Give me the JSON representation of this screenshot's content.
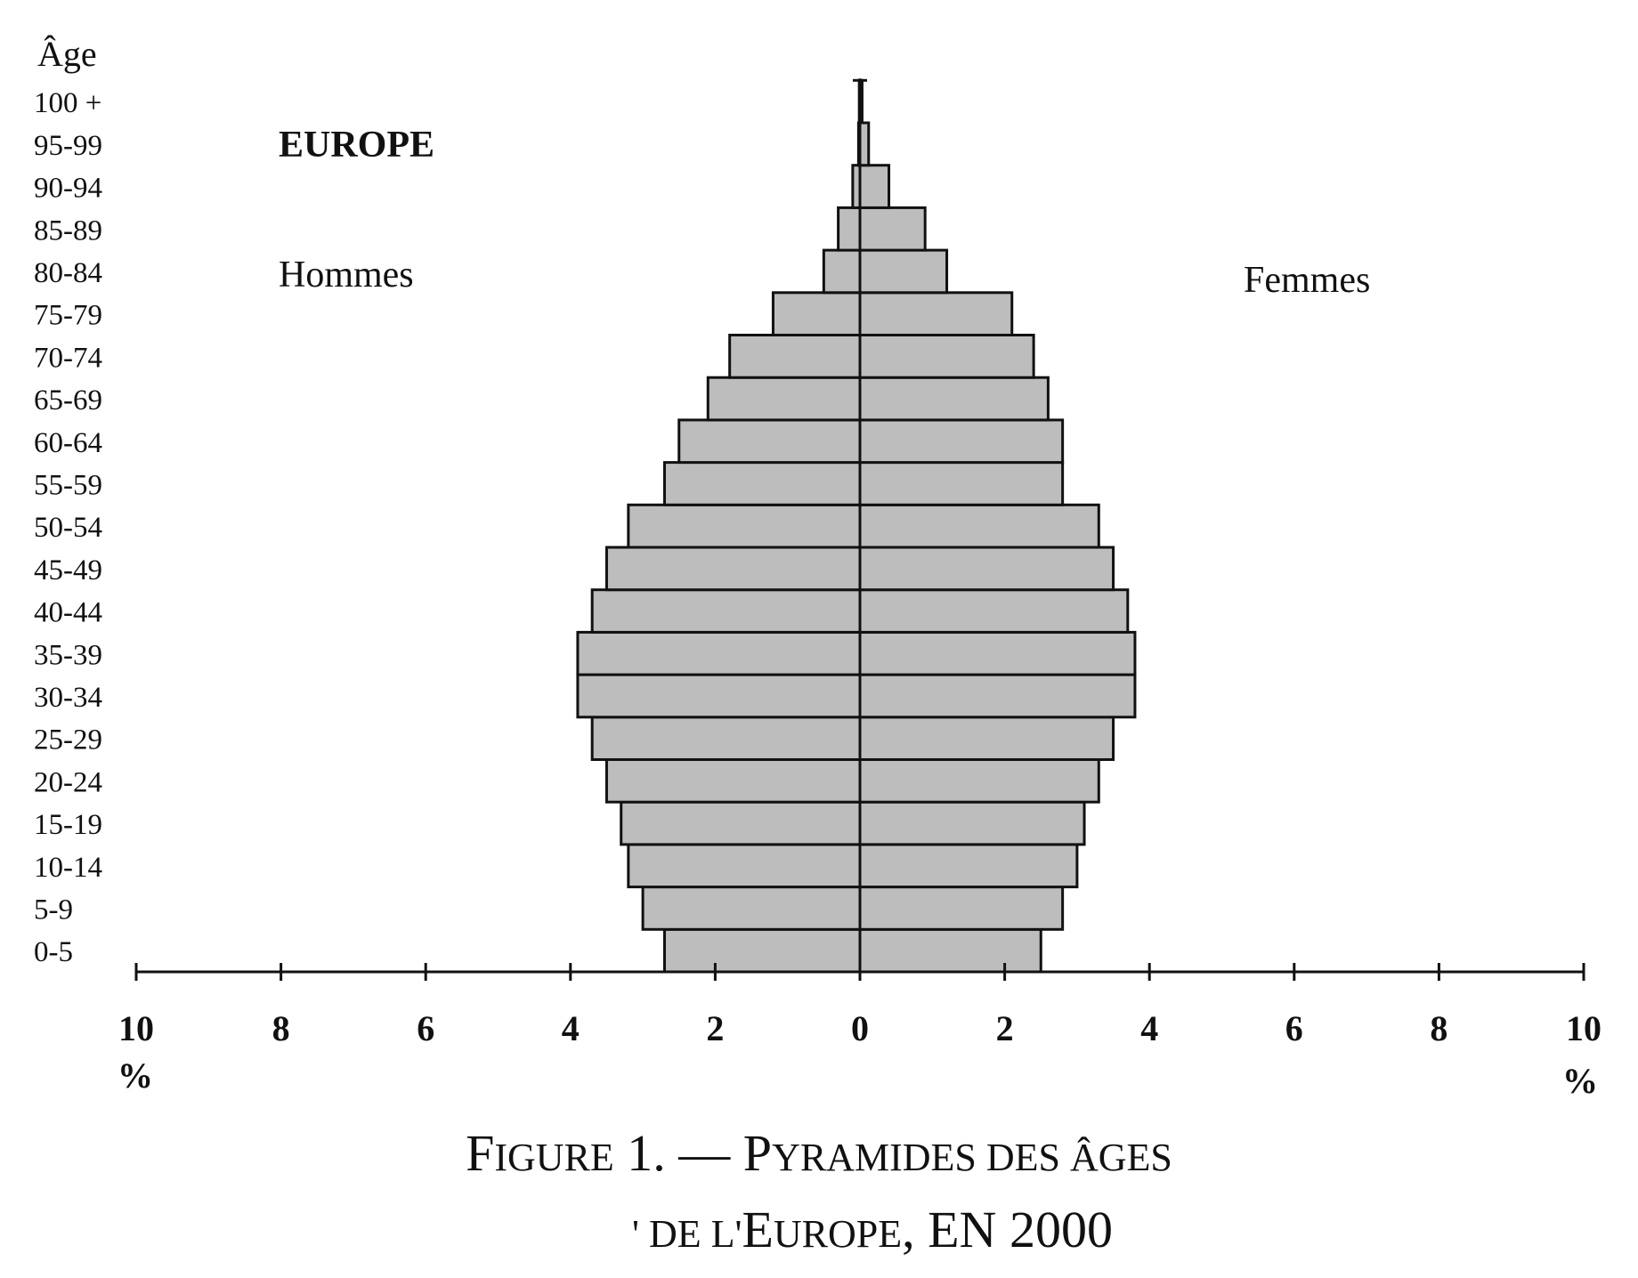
{
  "chart_data": {
    "type": "bar",
    "orientation": "horizontal",
    "title": "EUROPE",
    "y_axis_title": "Âge",
    "left_side_label": "Hommes",
    "right_side_label": "Femmes",
    "unit": "%",
    "xlim": [
      -10,
      10
    ],
    "x_ticks": [
      "10",
      "8",
      "6",
      "4",
      "2",
      "0",
      "2",
      "4",
      "6",
      "8",
      "10"
    ],
    "categories": [
      "0-5",
      "5-9",
      "10-14",
      "15-19",
      "20-24",
      "25-29",
      "30-34",
      "35-39",
      "40-44",
      "45-49",
      "50-54",
      "55-59",
      "60-64",
      "65-69",
      "70-74",
      "75-79",
      "80-84",
      "85-89",
      "90-94",
      "95-99",
      "100 +"
    ],
    "series": [
      {
        "name": "Hommes",
        "values": [
          2.7,
          3.0,
          3.2,
          3.3,
          3.5,
          3.7,
          3.9,
          3.9,
          3.7,
          3.5,
          3.2,
          2.7,
          2.5,
          2.1,
          1.8,
          1.2,
          0.5,
          0.3,
          0.1,
          0.02,
          0.01
        ]
      },
      {
        "name": "Femmes",
        "values": [
          2.5,
          2.8,
          3.0,
          3.1,
          3.3,
          3.5,
          3.8,
          3.8,
          3.7,
          3.5,
          3.3,
          2.8,
          2.8,
          2.6,
          2.4,
          2.1,
          1.2,
          0.9,
          0.4,
          0.12,
          0.03
        ]
      }
    ],
    "bar_color": "#bdbdbd",
    "grid": false
  },
  "caption": {
    "line1_first": "F",
    "line1_first_rest": "IGURE",
    "line1_num": " 1. — ",
    "line1_p": "P",
    "line1_p_rest": "YRAMIDES DES ÂGES",
    "line2_visible": "' DE L'",
    "line2_e": "E",
    "line2_e_rest": "UROPE",
    "line2_tail": ", EN 2000"
  }
}
